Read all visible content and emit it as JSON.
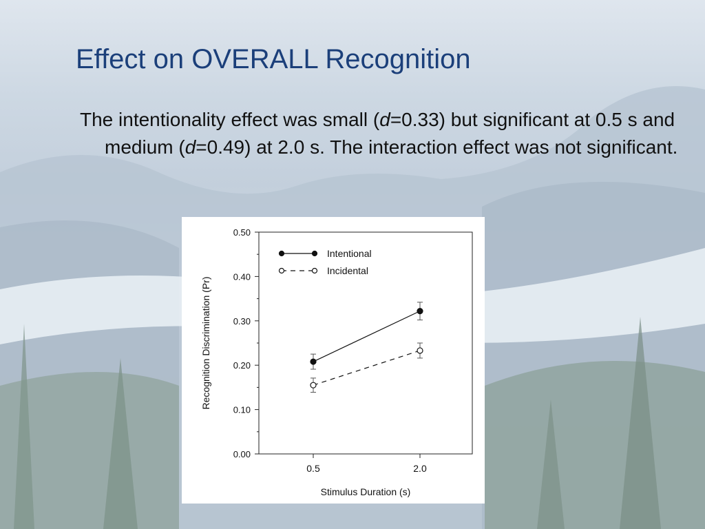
{
  "slide": {
    "title": "Effect on OVERALL Recognition",
    "body": {
      "p1": "The intentionality effect was small (",
      "d1_symbol": "d",
      "p2": "=0.33) but significant at 0.5 s and medium (",
      "d2_symbol": "d",
      "p3": "=0.49) at 2.0 s. The interaction effect was not significant."
    }
  },
  "chart_data": {
    "type": "line",
    "categories": [
      "0.5",
      "2.0"
    ],
    "xlabel": "Stimulus  Duration  (s)",
    "ylabel": "Recognition  Discrimination  (Pr)",
    "ylim": [
      0,
      0.5
    ],
    "yticks": [
      "0.00",
      "0.10",
      "0.20",
      "0.30",
      "0.40",
      "0.50"
    ],
    "grid": false,
    "legend_position": "top-left",
    "series": [
      {
        "name": "Intentional",
        "values": [
          0.208,
          0.322
        ],
        "error": [
          0.017,
          0.02
        ],
        "marker": "filled-circle",
        "line": "solid",
        "color": "#111111"
      },
      {
        "name": "Incidental",
        "values": [
          0.155,
          0.233
        ],
        "error": [
          0.016,
          0.017
        ],
        "marker": "open-circle",
        "line": "dashed",
        "color": "#111111"
      }
    ]
  }
}
